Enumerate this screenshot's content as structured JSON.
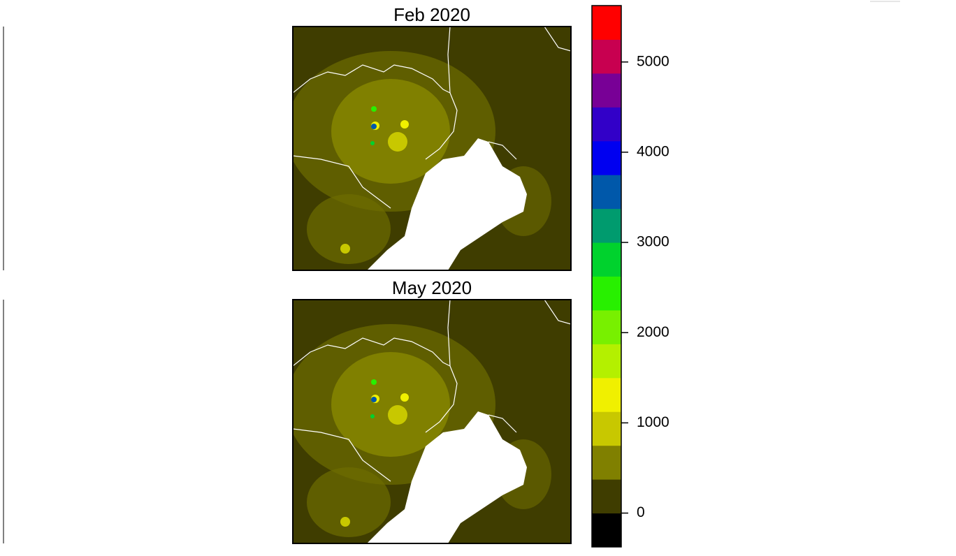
{
  "panels": [
    {
      "title": "Feb 2020"
    },
    {
      "title": "May 2020"
    }
  ],
  "colorbar": {
    "bins": [
      -375,
      0,
      375,
      750,
      1125,
      1500,
      1875,
      2250,
      2625,
      3000,
      3375,
      3750,
      4125,
      4500,
      4875,
      5250,
      5625
    ],
    "colors": [
      "#000000",
      "#3f3d00",
      "#808000",
      "#c8c800",
      "#f0f000",
      "#b4f000",
      "#78f000",
      "#28f000",
      "#00d22d",
      "#009b6e",
      "#0058aa",
      "#0000f0",
      "#3200c8",
      "#780096",
      "#c80050",
      "#ff0000"
    ],
    "ticks": [
      0,
      1000,
      2000,
      3000,
      4000,
      5000
    ]
  }
}
